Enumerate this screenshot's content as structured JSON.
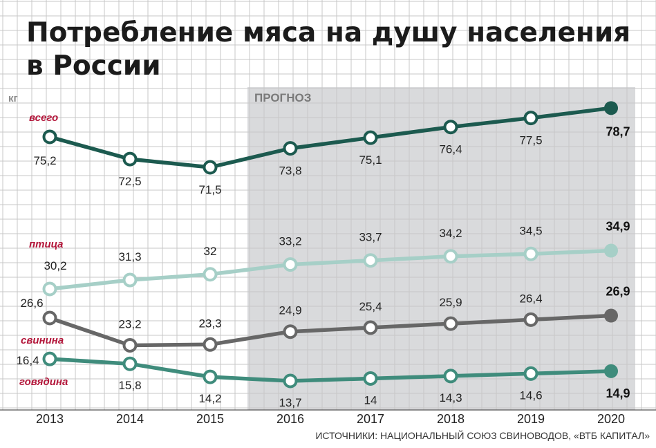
{
  "title": {
    "line1": "Потребление мяса на душу населения",
    "line2": "в России"
  },
  "unit": "кг",
  "forecast_label": "ПРОГНОЗ",
  "source": "ИСТОЧНИКИ: НАЦИОНАЛЬНЫЙ СОЮЗ СВИНОВОДОВ, «ВТБ КАПИТАЛ»",
  "chart_data": {
    "type": "line",
    "x": [
      "2013",
      "2014",
      "2015",
      "2016",
      "2017",
      "2018",
      "2019",
      "2020"
    ],
    "forecast_from": "2016",
    "grid": true,
    "series": [
      {
        "key": "total",
        "name": "всего",
        "color": "#1c5a4f",
        "values": [
          75.2,
          72.5,
          71.5,
          73.8,
          75.1,
          76.4,
          77.5,
          78.7
        ],
        "labels": [
          "75,2",
          "72,5",
          "71,5",
          "73,8",
          "75,1",
          "76,4",
          "77,5",
          "78,7"
        ]
      },
      {
        "key": "poultry",
        "name": "птица",
        "color": "#a6cfc7",
        "values": [
          30.2,
          31.3,
          32,
          33.2,
          33.7,
          34.2,
          34.5,
          34.9
        ],
        "labels": [
          "30,2",
          "31,3",
          "32",
          "33,2",
          "33,7",
          "34,2",
          "34,5",
          "34,9"
        ]
      },
      {
        "key": "pork",
        "name": "свинина",
        "color": "#676767",
        "values": [
          26.6,
          23.2,
          23.3,
          24.9,
          25.4,
          25.9,
          26.4,
          26.9
        ],
        "labels": [
          "26,6",
          "23,2",
          "23,3",
          "24,9",
          "25,4",
          "25,9",
          "26,4",
          "26,9"
        ]
      },
      {
        "key": "beef",
        "name": "говядина",
        "color": "#3f8c7c",
        "values": [
          16.4,
          15.8,
          14.2,
          13.7,
          14,
          14.3,
          14.6,
          14.9
        ],
        "labels": [
          "16,4",
          "15,8",
          "14,2",
          "13,7",
          "14",
          "14,3",
          "14,6",
          "14,9"
        ]
      }
    ]
  }
}
